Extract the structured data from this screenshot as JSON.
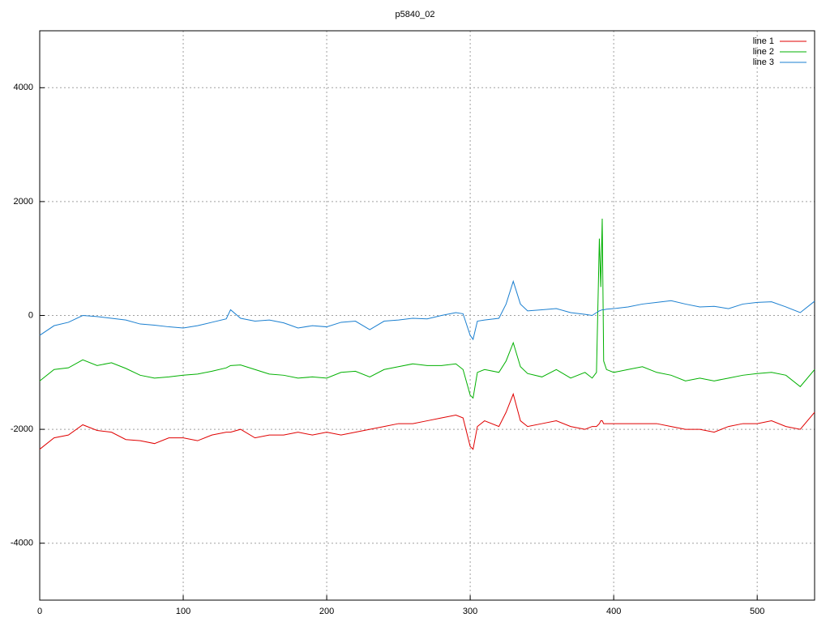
{
  "chart_data": {
    "type": "line",
    "title": "p5840_02",
    "x": [
      0,
      10,
      20,
      30,
      40,
      50,
      60,
      70,
      80,
      90,
      100,
      110,
      120,
      130,
      133,
      140,
      150,
      160,
      170,
      180,
      190,
      200,
      210,
      220,
      230,
      240,
      250,
      260,
      270,
      280,
      290,
      295,
      300,
      302,
      305,
      310,
      320,
      325,
      330,
      335,
      340,
      350,
      360,
      370,
      380,
      385,
      388,
      390,
      391,
      392,
      393,
      395,
      400,
      410,
      420,
      430,
      440,
      450,
      460,
      470,
      480,
      490,
      500,
      510,
      520,
      530,
      540
    ],
    "series": [
      {
        "name": "line 1",
        "color": "#e00000",
        "values": [
          -2350,
          -2150,
          -2100,
          -1920,
          -2020,
          -2050,
          -2180,
          -2200,
          -2250,
          -2150,
          -2150,
          -2200,
          -2100,
          -2050,
          -2050,
          -2000,
          -2150,
          -2100,
          -2100,
          -2050,
          -2100,
          -2050,
          -2100,
          -2050,
          -2000,
          -1950,
          -1900,
          -1900,
          -1850,
          -1800,
          -1750,
          -1800,
          -2300,
          -2350,
          -1950,
          -1850,
          -1950,
          -1700,
          -1380,
          -1850,
          -1950,
          -1900,
          -1850,
          -1950,
          -2000,
          -1950,
          -1950,
          -1900,
          -1850,
          -1850,
          -1900,
          -1900,
          -1900,
          -1900,
          -1900,
          -1900,
          -1950,
          -2000,
          -2000,
          -2050,
          -1950,
          -1900,
          -1900,
          -1850,
          -1950,
          -2000,
          -1700
        ]
      },
      {
        "name": "line 2",
        "color": "#00b000",
        "values": [
          -1150,
          -950,
          -920,
          -780,
          -880,
          -830,
          -930,
          -1050,
          -1100,
          -1080,
          -1050,
          -1030,
          -980,
          -920,
          -880,
          -870,
          -950,
          -1030,
          -1050,
          -1100,
          -1080,
          -1100,
          -1000,
          -980,
          -1080,
          -950,
          -900,
          -850,
          -880,
          -880,
          -850,
          -950,
          -1400,
          -1450,
          -1000,
          -950,
          -1000,
          -800,
          -480,
          -900,
          -1020,
          -1080,
          -950,
          -1100,
          -1000,
          -1100,
          -1000,
          1350,
          500,
          1700,
          -800,
          -950,
          -1000,
          -950,
          -900,
          -1000,
          -1050,
          -1150,
          -1100,
          -1150,
          -1100,
          -1050,
          -1020,
          -1000,
          -1050,
          -1250,
          -950
        ]
      },
      {
        "name": "line 3",
        "color": "#1a7fd0",
        "values": [
          -350,
          -180,
          -120,
          0,
          -20,
          -50,
          -80,
          -150,
          -170,
          -200,
          -220,
          -180,
          -120,
          -60,
          100,
          -50,
          -100,
          -80,
          -130,
          -220,
          -180,
          -200,
          -120,
          -100,
          -250,
          -100,
          -80,
          -50,
          -60,
          0,
          50,
          30,
          -350,
          -420,
          -100,
          -80,
          -50,
          200,
          600,
          200,
          80,
          100,
          120,
          50,
          20,
          0,
          50,
          80,
          90,
          100,
          100,
          110,
          120,
          150,
          200,
          230,
          260,
          200,
          150,
          160,
          120,
          200,
          230,
          240,
          150,
          50,
          250
        ]
      }
    ],
    "xlim": [
      0,
      540
    ],
    "ylim": [
      -5000,
      5000
    ],
    "xticks": [
      0,
      100,
      200,
      300,
      400,
      500
    ],
    "yticks": [
      -4000,
      -2000,
      0,
      2000,
      4000
    ],
    "grid": true,
    "legend": "top-right"
  }
}
